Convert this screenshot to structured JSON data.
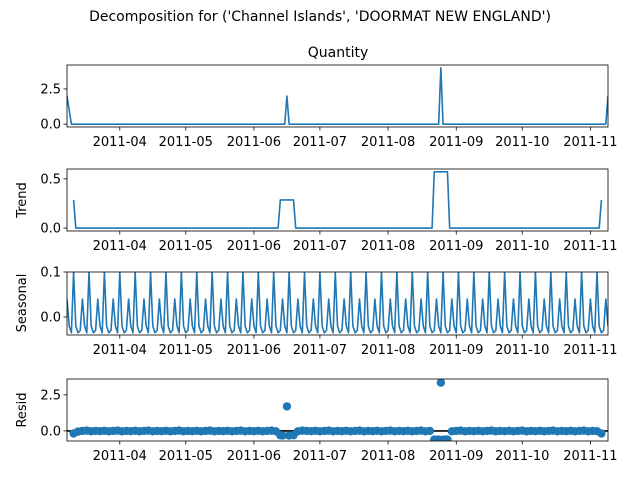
{
  "suptitle": "Decomposition for ('Channel Islands', 'DOORMAT NEW ENGLAND')",
  "chart_data": [
    {
      "type": "line",
      "panel": "observed",
      "title": "Quantity",
      "ylabel": "",
      "xlim": [
        "2011-03-08",
        "2011-11-09"
      ],
      "ylim": [
        -0.2,
        4.2
      ],
      "yticks": [
        0.0,
        2.5
      ],
      "ytick_labels": [
        "0.0",
        "2.5"
      ],
      "xtick_labels": [
        "2011-04",
        "2011-05",
        "2011-06",
        "2011-07",
        "2011-08",
        "2011-09",
        "2011-10",
        "2011-11"
      ],
      "color": "#1f77b4",
      "points": [
        {
          "x": "2011-03-08",
          "y": 2.0
        },
        {
          "x": "2011-03-10",
          "y": 0.0
        },
        {
          "x": "2011-06-15",
          "y": 0.0
        },
        {
          "x": "2011-06-16",
          "y": 2.0
        },
        {
          "x": "2011-06-17",
          "y": 0.0
        },
        {
          "x": "2011-08-24",
          "y": 0.0
        },
        {
          "x": "2011-08-25",
          "y": 4.0
        },
        {
          "x": "2011-08-26",
          "y": 0.0
        },
        {
          "x": "2011-11-08",
          "y": 0.0
        },
        {
          "x": "2011-11-09",
          "y": 2.0
        }
      ]
    },
    {
      "type": "line",
      "panel": "trend",
      "title": "",
      "ylabel": "Trend",
      "xlim": [
        "2011-03-08",
        "2011-11-09"
      ],
      "ylim": [
        -0.03,
        0.6
      ],
      "yticks": [
        0.0,
        0.5
      ],
      "ytick_labels": [
        "0.0",
        "0.5"
      ],
      "xtick_labels": [
        "2011-04",
        "2011-05",
        "2011-06",
        "2011-07",
        "2011-08",
        "2011-09",
        "2011-10",
        "2011-11"
      ],
      "color": "#1f77b4",
      "points": [
        {
          "x": "2011-03-11",
          "y": 0.286
        },
        {
          "x": "2011-03-12",
          "y": 0.0
        },
        {
          "x": "2011-06-12",
          "y": 0.0
        },
        {
          "x": "2011-06-13",
          "y": 0.286
        },
        {
          "x": "2011-06-19",
          "y": 0.286
        },
        {
          "x": "2011-06-20",
          "y": 0.0
        },
        {
          "x": "2011-08-21",
          "y": 0.0
        },
        {
          "x": "2011-08-22",
          "y": 0.571
        },
        {
          "x": "2011-08-28",
          "y": 0.571
        },
        {
          "x": "2011-08-29",
          "y": 0.0
        },
        {
          "x": "2011-11-05",
          "y": 0.0
        },
        {
          "x": "2011-11-06",
          "y": 0.286
        }
      ]
    },
    {
      "type": "line",
      "panel": "seasonal",
      "title": "",
      "ylabel": "Seasonal",
      "xlim": [
        "2011-03-08",
        "2011-11-09"
      ],
      "ylim": [
        -0.04,
        0.1
      ],
      "yticks": [
        0.0,
        0.1
      ],
      "ytick_labels": [
        "0.0",
        "0.1"
      ],
      "xtick_labels": [
        "2011-04",
        "2011-05",
        "2011-06",
        "2011-07",
        "2011-08",
        "2011-09",
        "2011-10",
        "2011-11"
      ],
      "color": "#1f77b4",
      "period_days": 7,
      "cycle_values": [
        0.04,
        -0.02,
        -0.035,
        0.1,
        -0.02,
        -0.035,
        -0.03
      ]
    },
    {
      "type": "scatter",
      "panel": "resid",
      "title": "",
      "ylabel": "Resid",
      "xlim": [
        "2011-03-08",
        "2011-11-09"
      ],
      "ylim": [
        -0.7,
        3.6
      ],
      "yticks": [
        0.0,
        2.5
      ],
      "ytick_labels": [
        "0.0",
        "2.5"
      ],
      "xtick_labels": [
        "2011-04",
        "2011-05",
        "2011-06",
        "2011-07",
        "2011-08",
        "2011-09",
        "2011-10",
        "2011-11"
      ],
      "color": "#1f77b4",
      "points": [
        {
          "x": "2011-03-11",
          "y": -0.18
        },
        {
          "x": "2011-03-13",
          "y": -0.05
        },
        {
          "x": "2011-03-15",
          "y": 0.0
        },
        {
          "x": "2011-03-17",
          "y": 0.02
        },
        {
          "x": "2011-03-19",
          "y": -0.03
        },
        {
          "x": "2011-03-21",
          "y": 0.0
        },
        {
          "x": "2011-03-23",
          "y": -0.02
        },
        {
          "x": "2011-03-25",
          "y": 0.01
        },
        {
          "x": "2011-03-27",
          "y": -0.03
        },
        {
          "x": "2011-03-29",
          "y": 0.0
        },
        {
          "x": "2011-03-31",
          "y": 0.02
        },
        {
          "x": "2011-04-02",
          "y": -0.03
        },
        {
          "x": "2011-04-04",
          "y": 0.0
        },
        {
          "x": "2011-04-06",
          "y": -0.02
        },
        {
          "x": "2011-04-08",
          "y": 0.01
        },
        {
          "x": "2011-04-10",
          "y": -0.03
        },
        {
          "x": "2011-04-12",
          "y": 0.0
        },
        {
          "x": "2011-04-14",
          "y": 0.02
        },
        {
          "x": "2011-04-16",
          "y": -0.03
        },
        {
          "x": "2011-04-18",
          "y": 0.0
        },
        {
          "x": "2011-04-20",
          "y": -0.02
        },
        {
          "x": "2011-04-22",
          "y": 0.01
        },
        {
          "x": "2011-04-24",
          "y": -0.03
        },
        {
          "x": "2011-04-26",
          "y": 0.0
        },
        {
          "x": "2011-04-28",
          "y": 0.02
        },
        {
          "x": "2011-04-30",
          "y": -0.03
        },
        {
          "x": "2011-05-02",
          "y": 0.0
        },
        {
          "x": "2011-05-04",
          "y": -0.02
        },
        {
          "x": "2011-05-06",
          "y": 0.01
        },
        {
          "x": "2011-05-08",
          "y": -0.03
        },
        {
          "x": "2011-05-10",
          "y": 0.0
        },
        {
          "x": "2011-05-12",
          "y": 0.02
        },
        {
          "x": "2011-05-14",
          "y": -0.03
        },
        {
          "x": "2011-05-16",
          "y": 0.0
        },
        {
          "x": "2011-05-18",
          "y": -0.02
        },
        {
          "x": "2011-05-20",
          "y": 0.01
        },
        {
          "x": "2011-05-22",
          "y": -0.03
        },
        {
          "x": "2011-05-24",
          "y": 0.0
        },
        {
          "x": "2011-05-26",
          "y": 0.02
        },
        {
          "x": "2011-05-28",
          "y": -0.03
        },
        {
          "x": "2011-05-30",
          "y": 0.0
        },
        {
          "x": "2011-06-01",
          "y": -0.02
        },
        {
          "x": "2011-06-03",
          "y": 0.01
        },
        {
          "x": "2011-06-05",
          "y": -0.03
        },
        {
          "x": "2011-06-07",
          "y": 0.0
        },
        {
          "x": "2011-06-09",
          "y": 0.02
        },
        {
          "x": "2011-06-11",
          "y": -0.03
        },
        {
          "x": "2011-06-13",
          "y": -0.3
        },
        {
          "x": "2011-06-14",
          "y": -0.32
        },
        {
          "x": "2011-06-16",
          "y": 1.7
        },
        {
          "x": "2011-06-17",
          "y": -0.32
        },
        {
          "x": "2011-06-19",
          "y": -0.3
        },
        {
          "x": "2011-06-21",
          "y": -0.03
        },
        {
          "x": "2011-06-23",
          "y": 0.02
        },
        {
          "x": "2011-06-25",
          "y": 0.0
        },
        {
          "x": "2011-06-27",
          "y": -0.02
        },
        {
          "x": "2011-06-29",
          "y": 0.01
        },
        {
          "x": "2011-07-01",
          "y": -0.03
        },
        {
          "x": "2011-07-03",
          "y": 0.0
        },
        {
          "x": "2011-07-05",
          "y": 0.02
        },
        {
          "x": "2011-07-07",
          "y": -0.03
        },
        {
          "x": "2011-07-09",
          "y": 0.0
        },
        {
          "x": "2011-07-11",
          "y": -0.02
        },
        {
          "x": "2011-07-13",
          "y": 0.01
        },
        {
          "x": "2011-07-15",
          "y": -0.03
        },
        {
          "x": "2011-07-17",
          "y": 0.0
        },
        {
          "x": "2011-07-19",
          "y": 0.02
        },
        {
          "x": "2011-07-21",
          "y": -0.03
        },
        {
          "x": "2011-07-23",
          "y": 0.0
        },
        {
          "x": "2011-07-25",
          "y": -0.02
        },
        {
          "x": "2011-07-27",
          "y": 0.01
        },
        {
          "x": "2011-07-29",
          "y": -0.03
        },
        {
          "x": "2011-07-31",
          "y": 0.0
        },
        {
          "x": "2011-08-02",
          "y": 0.02
        },
        {
          "x": "2011-08-04",
          "y": -0.03
        },
        {
          "x": "2011-08-06",
          "y": 0.0
        },
        {
          "x": "2011-08-08",
          "y": -0.02
        },
        {
          "x": "2011-08-10",
          "y": 0.01
        },
        {
          "x": "2011-08-12",
          "y": -0.03
        },
        {
          "x": "2011-08-14",
          "y": 0.0
        },
        {
          "x": "2011-08-16",
          "y": 0.02
        },
        {
          "x": "2011-08-18",
          "y": -0.03
        },
        {
          "x": "2011-08-20",
          "y": 0.0
        },
        {
          "x": "2011-08-22",
          "y": -0.6
        },
        {
          "x": "2011-08-23",
          "y": -0.62
        },
        {
          "x": "2011-08-24",
          "y": -0.6
        },
        {
          "x": "2011-08-25",
          "y": 3.35
        },
        {
          "x": "2011-08-26",
          "y": -0.62
        },
        {
          "x": "2011-08-27",
          "y": -0.6
        },
        {
          "x": "2011-08-28",
          "y": -0.6
        },
        {
          "x": "2011-08-30",
          "y": -0.03
        },
        {
          "x": "2011-09-01",
          "y": 0.0
        },
        {
          "x": "2011-09-03",
          "y": 0.02
        },
        {
          "x": "2011-09-05",
          "y": -0.03
        },
        {
          "x": "2011-09-07",
          "y": 0.0
        },
        {
          "x": "2011-09-09",
          "y": -0.02
        },
        {
          "x": "2011-09-11",
          "y": 0.01
        },
        {
          "x": "2011-09-13",
          "y": -0.03
        },
        {
          "x": "2011-09-15",
          "y": 0.0
        },
        {
          "x": "2011-09-17",
          "y": 0.02
        },
        {
          "x": "2011-09-19",
          "y": -0.03
        },
        {
          "x": "2011-09-21",
          "y": 0.0
        },
        {
          "x": "2011-09-23",
          "y": -0.02
        },
        {
          "x": "2011-09-25",
          "y": 0.01
        },
        {
          "x": "2011-09-27",
          "y": -0.03
        },
        {
          "x": "2011-09-29",
          "y": 0.0
        },
        {
          "x": "2011-10-01",
          "y": 0.02
        },
        {
          "x": "2011-10-03",
          "y": -0.03
        },
        {
          "x": "2011-10-05",
          "y": 0.0
        },
        {
          "x": "2011-10-07",
          "y": -0.02
        },
        {
          "x": "2011-10-09",
          "y": 0.01
        },
        {
          "x": "2011-10-11",
          "y": -0.03
        },
        {
          "x": "2011-10-13",
          "y": 0.0
        },
        {
          "x": "2011-10-15",
          "y": 0.02
        },
        {
          "x": "2011-10-17",
          "y": -0.03
        },
        {
          "x": "2011-10-19",
          "y": 0.0
        },
        {
          "x": "2011-10-21",
          "y": -0.02
        },
        {
          "x": "2011-10-23",
          "y": 0.01
        },
        {
          "x": "2011-10-25",
          "y": -0.03
        },
        {
          "x": "2011-10-27",
          "y": 0.0
        },
        {
          "x": "2011-10-29",
          "y": 0.02
        },
        {
          "x": "2011-10-31",
          "y": -0.03
        },
        {
          "x": "2011-11-02",
          "y": 0.0
        },
        {
          "x": "2011-11-04",
          "y": -0.02
        },
        {
          "x": "2011-11-06",
          "y": -0.18
        }
      ]
    }
  ]
}
